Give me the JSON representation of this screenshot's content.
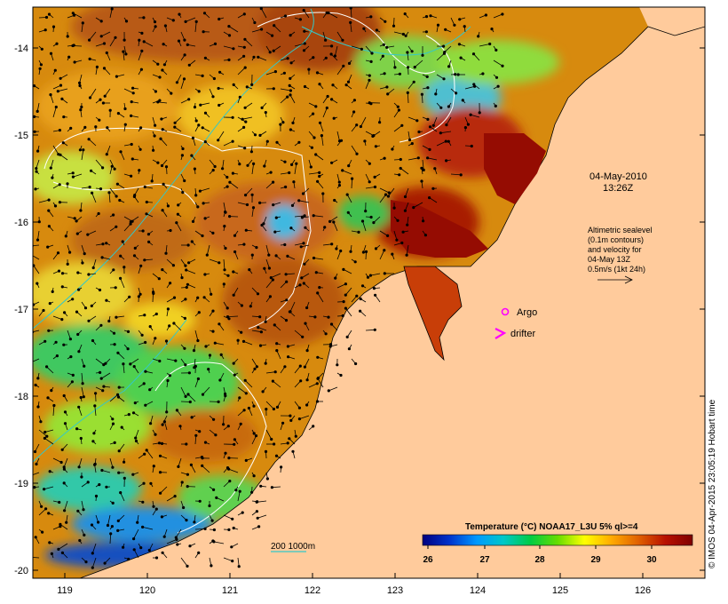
{
  "date_line1": "04-May-2010",
  "date_line2": "13:26Z",
  "altimetry_note": [
    "Altimetric sealevel",
    "(0.1m contours)",
    "and velocity for",
    "04-May 13Z",
    "0.5m/s (1kt 24h)"
  ],
  "legend": {
    "argo": "Argo",
    "drifter": "drifter",
    "isobaths": "200  1000m"
  },
  "colorbar": {
    "title": "Temperature (°C) NOAA17_L3U 5% ql>=4",
    "ticks": [
      "26",
      "27",
      "28",
      "29",
      "30"
    ],
    "stops": [
      "#000080",
      "#0033cc",
      "#0099ff",
      "#00c8c8",
      "#00cc44",
      "#66dd00",
      "#ffff00",
      "#ffaa00",
      "#e06000",
      "#b81000",
      "#800000"
    ]
  },
  "axes": {
    "lon_ticks": [
      "119",
      "120",
      "121",
      "122",
      "123",
      "124",
      "125",
      "126"
    ],
    "lat_ticks": [
      "-14",
      "-15",
      "-16",
      "-17",
      "-18",
      "-19",
      "-20"
    ]
  },
  "credit": "© IMOS 04-Apr-2015 23:05:19 Hobart time",
  "colors": {
    "land": "#ffcb9c",
    "contour": "#ffffff",
    "isobath": "#33c8c8",
    "marker": "#ff00ff"
  }
}
